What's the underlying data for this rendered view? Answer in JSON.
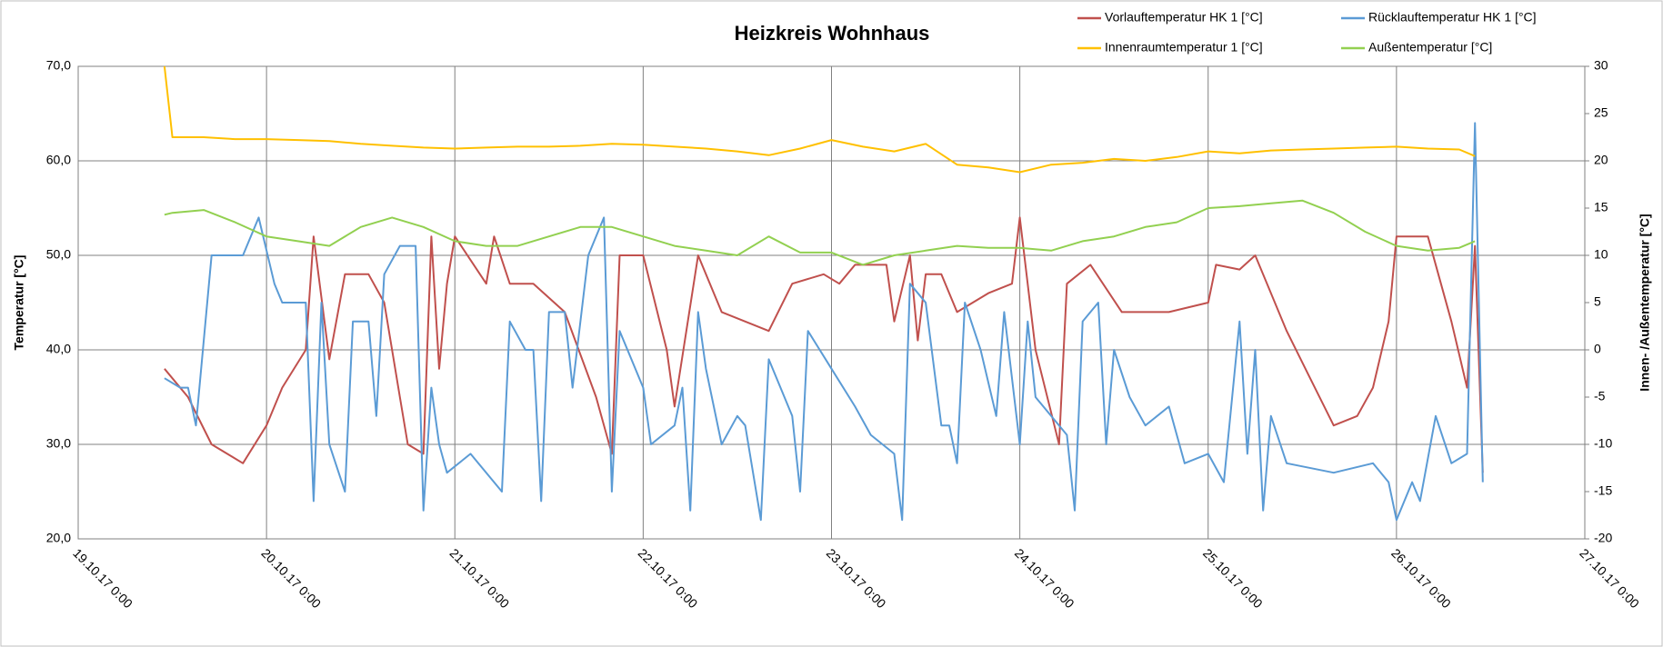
{
  "chart_data": {
    "type": "line",
    "title": "Heizkreis Wohnhaus",
    "ylabel": "Temperatur [°C]",
    "y2label": "Innen- /Außentemperatur [°C]",
    "xlim": [
      "19.10.17 0:00",
      "27.10.17 0:00"
    ],
    "xticks": [
      "19.10.17 0:00",
      "20.10.17 0:00",
      "21.10.17 0:00",
      "22.10.17 0:00",
      "23.10.17 0:00",
      "24.10.17 0:00",
      "25.10.17 0:00",
      "26.10.17 0:00",
      "27.10.17 0:00"
    ],
    "ylim": [
      20,
      70
    ],
    "yticks": [
      {
        "value": 20,
        "label": "20,0"
      },
      {
        "value": 30,
        "label": "30,0"
      },
      {
        "value": 40,
        "label": "40,0"
      },
      {
        "value": 50,
        "label": "50,0"
      },
      {
        "value": 60,
        "label": "60,0"
      },
      {
        "value": 70,
        "label": "70,0"
      }
    ],
    "y2lim": [
      -20,
      30
    ],
    "y2ticks": [
      -20,
      -15,
      -10,
      -5,
      0,
      5,
      10,
      15,
      20,
      25,
      30
    ],
    "grid": true,
    "legend": "top-right",
    "series": [
      {
        "name": "Vorlauftemperatur HK 1 [°C]",
        "color": "#c0504d",
        "x": [
          "19.10.17 11:00",
          "19.10.17 14:00",
          "19.10.17 17:00",
          "19.10.17 21:00",
          "20.10.17 0:00",
          "20.10.17 2:00",
          "20.10.17 5:00",
          "20.10.17 6:00",
          "20.10.17 8:00",
          "20.10.17 10:00",
          "20.10.17 13:00",
          "20.10.17 15:00",
          "20.10.17 17:00",
          "20.10.17 18:00",
          "20.10.17 20:00",
          "20.10.17 21:00",
          "20.10.17 22:00",
          "20.10.17 23:00",
          "21.10.17 0:00",
          "21.10.17 4:00",
          "21.10.17 5:00",
          "21.10.17 7:00",
          "21.10.17 10:00",
          "21.10.17 14:00",
          "21.10.17 18:00",
          "21.10.17 20:00",
          "21.10.17 21:00",
          "22.10.17 0:00",
          "22.10.17 3:00",
          "22.10.17 4:00",
          "22.10.17 7:00",
          "22.10.17 10:00",
          "22.10.17 13:00",
          "22.10.17 16:00",
          "22.10.17 19:00",
          "22.10.17 23:00",
          "23.10.17 1:00",
          "23.10.17 3:00",
          "23.10.17 7:00",
          "23.10.17 8:00",
          "23.10.17 10:00",
          "23.10.17 11:00",
          "23.10.17 12:00",
          "23.10.17 14:00",
          "23.10.17 16:00",
          "23.10.17 20:00",
          "23.10.17 23:00",
          "24.10.17 0:00",
          "24.10.17 2:00",
          "24.10.17 5:00",
          "24.10.17 6:00",
          "24.10.17 9:00",
          "24.10.17 13:00",
          "24.10.17 19:00",
          "25.10.17 0:00",
          "25.10.17 1:00",
          "25.10.17 4:00",
          "25.10.17 6:00",
          "25.10.17 10:00",
          "25.10.17 13:00",
          "25.10.17 16:00",
          "25.10.17 19:00",
          "25.10.17 21:00",
          "25.10.17 23:00",
          "26.10.17 0:00",
          "26.10.17 4:00",
          "26.10.17 7:00",
          "26.10.17 9:00",
          "26.10.17 10:00",
          "26.10.17 11:00"
        ],
        "values": [
          38,
          35,
          30,
          28,
          32,
          36,
          40,
          52,
          39,
          48,
          48,
          45,
          35,
          30,
          29,
          52,
          38,
          47,
          52,
          47,
          52,
          47,
          47,
          44,
          35,
          29,
          50,
          50,
          40,
          34,
          50,
          44,
          43,
          42,
          47,
          48,
          47,
          49,
          49,
          43,
          50,
          41,
          48,
          48,
          44,
          46,
          47,
          54,
          40,
          30,
          47,
          49,
          44,
          44,
          45,
          49,
          48.5,
          50,
          42,
          37,
          32,
          33,
          36,
          43,
          52,
          52,
          43,
          36,
          51,
          27
        ]
      },
      {
        "name": "Rücklauftemperatur HK 1 [°C]",
        "color": "#5b9bd5",
        "x": [
          "19.10.17 11:00",
          "19.10.17 13:00",
          "19.10.17 14:00",
          "19.10.17 15:00",
          "19.10.17 17:00",
          "19.10.17 19:00",
          "19.10.17 21:00",
          "19.10.17 23:00",
          "20.10.17 1:00",
          "20.10.17 2:00",
          "20.10.17 5:00",
          "20.10.17 6:00",
          "20.10.17 7:00",
          "20.10.17 8:00",
          "20.10.17 10:00",
          "20.10.17 11:00",
          "20.10.17 13:00",
          "20.10.17 14:00",
          "20.10.17 15:00",
          "20.10.17 17:00",
          "20.10.17 19:00",
          "20.10.17 20:00",
          "20.10.17 21:00",
          "20.10.17 22:00",
          "20.10.17 23:00",
          "21.10.17 2:00",
          "21.10.17 6:00",
          "21.10.17 7:00",
          "21.10.17 9:00",
          "21.10.17 10:00",
          "21.10.17 11:00",
          "21.10.17 12:00",
          "21.10.17 14:00",
          "21.10.17 15:00",
          "21.10.17 17:00",
          "21.10.17 19:00",
          "21.10.17 20:00",
          "21.10.17 21:00",
          "22.10.17 0:00",
          "22.10.17 1:00",
          "22.10.17 4:00",
          "22.10.17 5:00",
          "22.10.17 6:00",
          "22.10.17 7:00",
          "22.10.17 8:00",
          "22.10.17 10:00",
          "22.10.17 12:00",
          "22.10.17 13:00",
          "22.10.17 15:00",
          "22.10.17 16:00",
          "22.10.17 19:00",
          "22.10.17 20:00",
          "22.10.17 21:00",
          "23.10.17 0:00",
          "23.10.17 3:00",
          "23.10.17 5:00",
          "23.10.17 8:00",
          "23.10.17 9:00",
          "23.10.17 10:00",
          "23.10.17 12:00",
          "23.10.17 14:00",
          "23.10.17 15:00",
          "23.10.17 16:00",
          "23.10.17 17:00",
          "23.10.17 19:00",
          "23.10.17 21:00",
          "23.10.17 22:00",
          "24.10.17 0:00",
          "24.10.17 1:00",
          "24.10.17 2:00",
          "24.10.17 6:00",
          "24.10.17 7:00",
          "24.10.17 8:00",
          "24.10.17 10:00",
          "24.10.17 11:00",
          "24.10.17 12:00",
          "24.10.17 14:00",
          "24.10.17 16:00",
          "24.10.17 19:00",
          "24.10.17 21:00",
          "25.10.17 0:00",
          "25.10.17 2:00",
          "25.10.17 4:00",
          "25.10.17 5:00",
          "25.10.17 6:00",
          "25.10.17 7:00",
          "25.10.17 8:00",
          "25.10.17 10:00",
          "25.10.17 16:00",
          "25.10.17 21:00",
          "25.10.17 23:00",
          "26.10.17 0:00",
          "26.10.17 2:00",
          "26.10.17 3:00",
          "26.10.17 5:00",
          "26.10.17 7:00",
          "26.10.17 9:00",
          "26.10.17 10:00",
          "26.10.17 11:00"
        ],
        "values": [
          37,
          36,
          36,
          32,
          50,
          50,
          50,
          54,
          47,
          45,
          45,
          24,
          45,
          30,
          25,
          43,
          43,
          33,
          48,
          51,
          51,
          23,
          36,
          30,
          27,
          29,
          25,
          43,
          40,
          40,
          24,
          44,
          44,
          36,
          50,
          54,
          25,
          42,
          36,
          30,
          32,
          36,
          23,
          44,
          38,
          30,
          33,
          32,
          22,
          39,
          33,
          25,
          42,
          38,
          34,
          31,
          29,
          22,
          47,
          45,
          32,
          32,
          28,
          45,
          40,
          33,
          44,
          30,
          43,
          35,
          31,
          23,
          43,
          45,
          30,
          40,
          35,
          32,
          34,
          28,
          29,
          26,
          43,
          29,
          40,
          23,
          33,
          28,
          27,
          28,
          26,
          22,
          26,
          24,
          33,
          28,
          29,
          64,
          26
        ]
      },
      {
        "name": "Innenraumtemperatur 1 [°C]",
        "color": "#ffc000",
        "axis": "y2",
        "x": [
          "19.10.17 11:00",
          "19.10.17 12:00",
          "19.10.17 16:00",
          "19.10.17 20:00",
          "20.10.17 0:00",
          "20.10.17 4:00",
          "20.10.17 8:00",
          "20.10.17 12:00",
          "20.10.17 16:00",
          "20.10.17 20:00",
          "21.10.17 0:00",
          "21.10.17 4:00",
          "21.10.17 8:00",
          "21.10.17 12:00",
          "21.10.17 16:00",
          "21.10.17 20:00",
          "22.10.17 0:00",
          "22.10.17 4:00",
          "22.10.17 8:00",
          "22.10.17 12:00",
          "22.10.17 16:00",
          "22.10.17 20:00",
          "23.10.17 0:00",
          "23.10.17 4:00",
          "23.10.17 8:00",
          "23.10.17 12:00",
          "23.10.17 16:00",
          "23.10.17 20:00",
          "24.10.17 0:00",
          "24.10.17 4:00",
          "24.10.17 8:00",
          "24.10.17 12:00",
          "24.10.17 16:00",
          "24.10.17 20:00",
          "25.10.17 0:00",
          "25.10.17 4:00",
          "25.10.17 8:00",
          "25.10.17 12:00",
          "25.10.17 16:00",
          "25.10.17 20:00",
          "26.10.17 0:00",
          "26.10.17 4:00",
          "26.10.17 8:00",
          "26.10.17 10:00"
        ],
        "values": [
          30,
          22.5,
          22.5,
          22.3,
          22.3,
          22.2,
          22.1,
          21.8,
          21.6,
          21.4,
          21.3,
          21.4,
          21.5,
          21.5,
          21.6,
          21.8,
          21.7,
          21.5,
          21.3,
          21,
          20.6,
          21.3,
          22.2,
          21.5,
          21,
          21.8,
          19.6,
          19.3,
          18.8,
          19.6,
          19.8,
          20.2,
          20,
          20.4,
          21,
          20.8,
          21.1,
          21.2,
          21.3,
          21.4,
          21.5,
          21.3,
          21.2,
          20.5
        ]
      },
      {
        "name": "Außentemperatur [°C]",
        "color": "#92d050",
        "axis": "y2",
        "x": [
          "19.10.17 11:00",
          "19.10.17 12:00",
          "19.10.17 16:00",
          "19.10.17 20:00",
          "20.10.17 0:00",
          "20.10.17 4:00",
          "20.10.17 8:00",
          "20.10.17 12:00",
          "20.10.17 16:00",
          "20.10.17 20:00",
          "21.10.17 0:00",
          "21.10.17 4:00",
          "21.10.17 8:00",
          "21.10.17 12:00",
          "21.10.17 16:00",
          "21.10.17 20:00",
          "22.10.17 0:00",
          "22.10.17 4:00",
          "22.10.17 8:00",
          "22.10.17 12:00",
          "22.10.17 16:00",
          "22.10.17 20:00",
          "23.10.17 0:00",
          "23.10.17 4:00",
          "23.10.17 8:00",
          "23.10.17 12:00",
          "23.10.17 16:00",
          "23.10.17 20:00",
          "24.10.17 0:00",
          "24.10.17 4:00",
          "24.10.17 8:00",
          "24.10.17 12:00",
          "24.10.17 16:00",
          "24.10.17 20:00",
          "25.10.17 0:00",
          "25.10.17 4:00",
          "25.10.17 8:00",
          "25.10.17 12:00",
          "25.10.17 16:00",
          "25.10.17 20:00",
          "26.10.17 0:00",
          "26.10.17 4:00",
          "26.10.17 8:00",
          "26.10.17 10:00"
        ],
        "values": [
          14.3,
          14.5,
          14.8,
          13.5,
          12,
          11.5,
          11,
          13,
          14,
          13,
          11.5,
          11,
          11,
          12,
          13,
          13,
          12,
          11,
          10.5,
          10,
          12,
          10.3,
          10.3,
          9,
          10,
          10.5,
          11,
          10.8,
          10.8,
          10.5,
          11.5,
          12,
          13,
          13.5,
          15,
          15.2,
          15.5,
          15.8,
          14.5,
          12.5,
          11,
          10.5,
          10.8,
          11.5
        ]
      }
    ]
  }
}
